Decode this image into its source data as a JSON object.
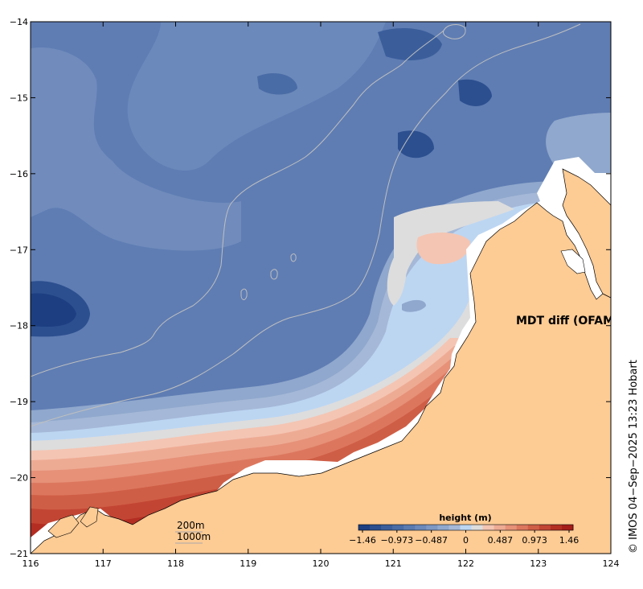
{
  "map": {
    "title": "MDT diff (OFAM−CMEMS)",
    "credit": "© IMOS 04−Sep−2025 13:23 Hobart",
    "lon_labels": [
      "116",
      "117",
      "118",
      "119",
      "120",
      "121",
      "122",
      "123",
      "124"
    ],
    "lat_labels": [
      "−14",
      "−15",
      "−16",
      "−17",
      "−18",
      "−19",
      "−20",
      "−21"
    ],
    "lon_range": [
      116,
      124
    ],
    "lat_range": [
      -21,
      -14
    ],
    "land_color": "#fdcb94",
    "contours": [
      {
        "label": "200m",
        "color": "#aaaaaa"
      },
      {
        "label": "1000m",
        "color": "#aaaaaa"
      }
    ]
  },
  "legend": {
    "title": "height (m)",
    "tick_labels": [
      "−1.46",
      "−0.973",
      "−0.487",
      "0",
      "0.487",
      "0.973",
      "1.46"
    ],
    "range": [
      -1.46,
      1.46
    ],
    "colors": [
      "#1d3f82",
      "#2c4f8f",
      "#3b5e9b",
      "#4a6ca6",
      "#5a7bb0",
      "#6b89ba",
      "#7d98c3",
      "#90a8cd",
      "#a5b8d7",
      "#bcd6f2",
      "#dddddd",
      "#f4c5b3",
      "#eeab94",
      "#e69178",
      "#dc775e",
      "#cf5e46",
      "#c24533",
      "#b42d22",
      "#a51d1a"
    ]
  }
}
